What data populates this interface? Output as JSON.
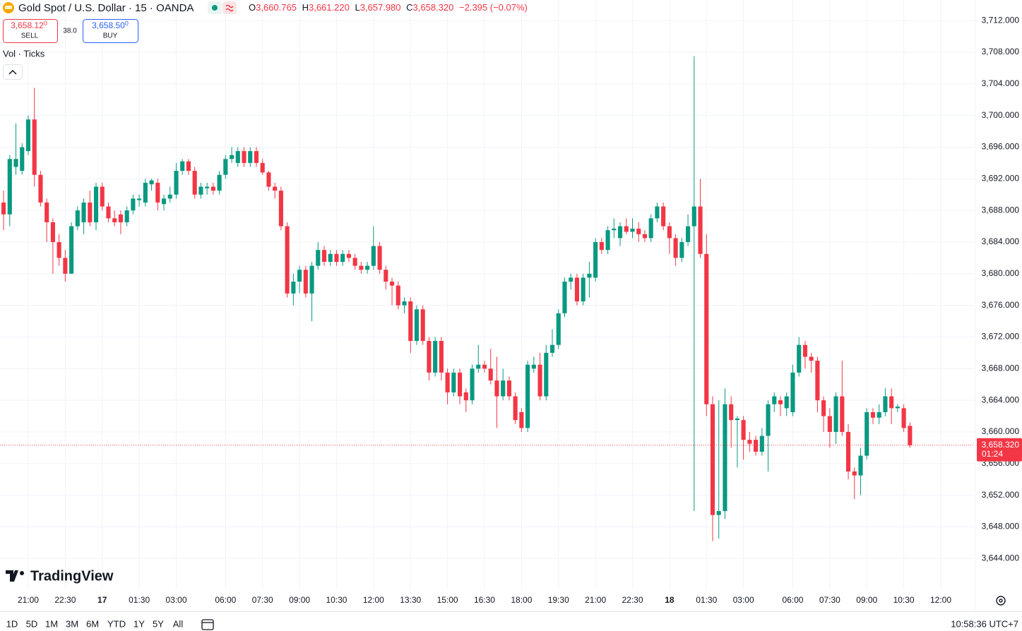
{
  "header": {
    "symbol": "Gold Spot / U.S. Dollar · 15 · OANDA",
    "o_label": "O",
    "open": "3,660.765",
    "h_label": "H",
    "high": "3,661.220",
    "l_label": "L",
    "low": "3,657.980",
    "c_label": "C",
    "close": "3,658.320",
    "change": "−2.395 (−0.07%)"
  },
  "trade": {
    "sell_price": "3,658.12",
    "sell_digit": "0",
    "sell_label": "SELL",
    "spread": "38.0",
    "buy_price": "3,658.50",
    "buy_digit": "0",
    "buy_label": "BUY"
  },
  "indicator": "Vol · Ticks",
  "logo": "TradingView",
  "ranges": [
    "1D",
    "5D",
    "1M",
    "3M",
    "6M",
    "YTD",
    "1Y",
    "5Y",
    "All"
  ],
  "clock": "10:58:36 UTC+7",
  "chart_data": {
    "type": "candlestick",
    "up_color": "#089981",
    "down_color": "#f23645",
    "grid": true,
    "xlim": [
      -0.58,
      157.5
    ],
    "ylim": [
      3640.1,
      3714.6
    ],
    "xticks": [
      {
        "value": 4,
        "label": "21:00"
      },
      {
        "value": 10,
        "label": "22:30"
      },
      {
        "value": 16,
        "label": "17"
      },
      {
        "value": 22,
        "label": "01:30"
      },
      {
        "value": 28,
        "label": "03:00"
      },
      {
        "value": 36,
        "label": "06:00"
      },
      {
        "value": 42,
        "label": "07:30"
      },
      {
        "value": 48,
        "label": "09:00"
      },
      {
        "value": 54,
        "label": "10:30"
      },
      {
        "value": 60,
        "label": "12:00"
      },
      {
        "value": 66,
        "label": "13:30"
      },
      {
        "value": 72,
        "label": "15:00"
      },
      {
        "value": 78,
        "label": "16:30"
      },
      {
        "value": 84,
        "label": "18:00"
      },
      {
        "value": 90,
        "label": "19:30"
      },
      {
        "value": 96,
        "label": "21:00"
      },
      {
        "value": 102,
        "label": "22:30"
      },
      {
        "value": 108,
        "label": "18"
      },
      {
        "value": 114,
        "label": "01:30"
      },
      {
        "value": 120,
        "label": "03:00"
      },
      {
        "value": 128,
        "label": "06:00"
      },
      {
        "value": 134,
        "label": "07:30"
      },
      {
        "value": 140,
        "label": "09:00"
      },
      {
        "value": 146,
        "label": "10:30"
      },
      {
        "value": 152,
        "label": "12:00"
      }
    ],
    "yticks": [
      {
        "value": 3644,
        "label": "3,644.000"
      },
      {
        "value": 3648,
        "label": "3,648.000"
      },
      {
        "value": 3652,
        "label": "3,652.000"
      },
      {
        "value": 3656,
        "label": "3,656.000"
      },
      {
        "value": 3660,
        "label": "3,660.000"
      },
      {
        "value": 3664,
        "label": "3,664.000"
      },
      {
        "value": 3668,
        "label": "3,668.000"
      },
      {
        "value": 3672,
        "label": "3,672.000"
      },
      {
        "value": 3676,
        "label": "3,676.000"
      },
      {
        "value": 3680,
        "label": "3,680.000"
      },
      {
        "value": 3684,
        "label": "3,684.000"
      },
      {
        "value": 3688,
        "label": "3,688.000"
      },
      {
        "value": 3692,
        "label": "3,692.000"
      },
      {
        "value": 3696,
        "label": "3,696.000"
      },
      {
        "value": 3700,
        "label": "3,700.000"
      },
      {
        "value": 3704,
        "label": "3,704.000"
      },
      {
        "value": 3708,
        "label": "3,708.000"
      },
      {
        "value": 3712,
        "label": "3,712.000"
      }
    ],
    "last_price": {
      "value": 3658.32,
      "label": "3,658.320"
    },
    "countdown": "01:24",
    "open": [
      3689,
      3687.5,
      3693.5,
      3693,
      3695.5,
      3699.5,
      3692.5,
      3689,
      3686.5,
      3684,
      3682,
      3680,
      3686,
      3686.5,
      3689,
      3686.5,
      3691,
      3688.5,
      3687,
      3687.5,
      3686.5,
      3688,
      3689.3,
      3689,
      3691.3,
      3691.5,
      3688.8,
      3689.5,
      3690,
      3693,
      3694.2,
      3693,
      3690,
      3690.8,
      3691,
      3690.5,
      3692.5,
      3694.5,
      3694,
      3695.5,
      3694,
      3695.5,
      3694,
      3692.8,
      3691,
      3690.5,
      3686,
      3677.5,
      3679,
      3680.5,
      3677.5,
      3681,
      3683,
      3681.5,
      3682.5,
      3681.5,
      3682.5,
      3682,
      3681,
      3680.5,
      3681,
      3683.5,
      3680.5,
      3679,
      3678.5,
      3676,
      3676.5,
      3671.5,
      3675.5,
      3671.5,
      3667.5,
      3671.5,
      3667.5,
      3665,
      3667.5,
      3665,
      3664,
      3668,
      3668.5,
      3668,
      3666.5,
      3664.5,
      3666.5,
      3664.5,
      3662.5,
      3660.5,
      3668,
      3668.5,
      3664.5,
      3670,
      3671,
      3675,
      3679,
      3679.5,
      3676.5,
      3679.5,
      3679.5,
      3684,
      3683,
      3685.5,
      3684.5,
      3686,
      3685.3,
      3685.7,
      3685,
      3684.5,
      3687,
      3688.5,
      3686,
      3684.5,
      3682,
      3684,
      3686,
      3688.5,
      3682.5,
      3663.5,
      3649.5,
      3650,
      3663.5,
      3661.5,
      3661.5,
      3659,
      3659,
      3657.5,
      3659.5,
      3663.5,
      3664,
      3663,
      3662.5,
      3667.5,
      3671,
      3669.5,
      3669,
      3664,
      3662,
      3660,
      3664.5,
      3660,
      3655,
      3654.5,
      3657,
      3662.5,
      3661.8,
      3662.5,
      3664.5,
      3663,
      3663,
      3660.765
    ],
    "high": [
      3690.5,
      3695,
      3699,
      3696.5,
      3700,
      3703.5,
      3693,
      3689.5,
      3687,
      3685,
      3683,
      3686.5,
      3688.5,
      3689.5,
      3690.5,
      3691.5,
      3691.5,
      3689,
      3688,
      3688,
      3688.5,
      3690,
      3690,
      3692,
      3692,
      3692,
      3690,
      3691,
      3694,
      3694.5,
      3694.5,
      3693.5,
      3691.5,
      3691.5,
      3691.5,
      3693,
      3695,
      3696,
      3696,
      3696,
      3696,
      3696,
      3694.5,
      3693,
      3691.5,
      3691,
      3686.5,
      3680,
      3681,
      3681,
      3681.5,
      3684,
      3683.5,
      3683,
      3683,
      3683,
      3683,
      3682.5,
      3681.5,
      3681.5,
      3686,
      3684,
      3681,
      3679.5,
      3679,
      3677,
      3677,
      3676,
      3676,
      3672,
      3672,
      3672,
      3668,
      3668,
      3668,
      3665.5,
      3668.5,
      3671,
      3669,
      3670.5,
      3669.5,
      3668,
      3667,
      3665,
      3663,
      3669,
      3669.5,
      3670,
      3671,
      3673,
      3675.5,
      3679.5,
      3680,
      3680,
      3680,
      3681.5,
      3684.5,
      3684.5,
      3686,
      3687,
      3686.5,
      3687,
      3687,
      3686.5,
      3685.5,
      3687.5,
      3689,
      3689,
      3686.5,
      3685,
      3684.5,
      3687.5,
      3707.5,
      3692,
      3685,
      3664.5,
      3664,
      3665.5,
      3664.5,
      3662,
      3662,
      3660,
      3659.5,
      3660.5,
      3664,
      3665,
      3664.5,
      3665,
      3668.5,
      3672,
      3671.5,
      3670,
      3669.5,
      3664.5,
      3663,
      3665,
      3669,
      3661,
      3655.5,
      3658,
      3663,
      3663,
      3663.5,
      3665.5,
      3665.5,
      3663.5,
      3663.5,
      3661.22
    ],
    "low": [
      3685.5,
      3686,
      3692.5,
      3692.5,
      3695,
      3691,
      3688.5,
      3684,
      3680,
      3681,
      3679,
      3680,
      3685.5,
      3685,
      3686,
      3685.5,
      3688,
      3686.5,
      3686,
      3685,
      3686,
      3687.5,
      3688.5,
      3688.5,
      3690.5,
      3688,
      3688,
      3689,
      3689.5,
      3692.5,
      3692.5,
      3689.5,
      3689.5,
      3690,
      3690,
      3690,
      3692,
      3694,
      3693.5,
      3693.5,
      3693.5,
      3693.5,
      3692.5,
      3690.5,
      3689.5,
      3685.5,
      3677,
      3676,
      3677.5,
      3677,
      3674,
      3680.5,
      3681,
      3681,
      3681,
      3681,
      3681.5,
      3680.5,
      3680,
      3680,
      3680.5,
      3680,
      3678,
      3676,
      3675.5,
      3675,
      3670,
      3671,
      3671,
      3666.5,
      3667,
      3666.5,
      3663.5,
      3664.5,
      3663.5,
      3662.5,
      3663.5,
      3667.5,
      3667.5,
      3666,
      3660.5,
      3664,
      3664,
      3661,
      3660,
      3660,
      3667.5,
      3664,
      3664,
      3669.5,
      3670.5,
      3674.5,
      3678,
      3676,
      3676,
      3677,
      3679,
      3682.5,
      3682.5,
      3684.5,
      3683.5,
      3685,
      3684.5,
      3684,
      3684,
      3684,
      3686.5,
      3685.5,
      3682.5,
      3681,
      3681.5,
      3683.5,
      3650,
      3682,
      3662,
      3646.2,
      3646.5,
      3649,
      3658,
      3655.5,
      3656.5,
      3657.5,
      3657,
      3657,
      3655,
      3662.5,
      3662,
      3662,
      3662,
      3667,
      3668,
      3667.5,
      3662.5,
      3660,
      3658,
      3658.5,
      3659.5,
      3654,
      3651.5,
      3652,
      3656.5,
      3661,
      3661,
      3662,
      3661,
      3662.5,
      3660,
      3657.98
    ],
    "close": [
      3687.5,
      3694.5,
      3694.5,
      3696,
      3699.5,
      3692.5,
      3689,
      3686.5,
      3684,
      3682,
      3680,
      3686,
      3688,
      3689,
      3686.5,
      3691,
      3688.5,
      3687,
      3686.5,
      3686.5,
      3688,
      3689.5,
      3689.5,
      3691.5,
      3691.8,
      3689,
      3689.5,
      3690,
      3693,
      3694.2,
      3693,
      3690,
      3691,
      3691,
      3690.5,
      3692.5,
      3694.5,
      3695,
      3695.5,
      3694,
      3695.5,
      3694,
      3692.8,
      3691,
      3690.5,
      3686,
      3677.5,
      3679,
      3680.5,
      3677.5,
      3681,
      3683,
      3681.5,
      3682.5,
      3681.5,
      3682.5,
      3682,
      3681,
      3680.5,
      3681,
      3683.5,
      3680.5,
      3679,
      3678.5,
      3676,
      3676.5,
      3671.5,
      3675.5,
      3671.5,
      3667.5,
      3671.5,
      3667.5,
      3665,
      3667.5,
      3664.5,
      3664,
      3668,
      3668.5,
      3668,
      3666.5,
      3664.5,
      3666.5,
      3664.5,
      3661.5,
      3660.5,
      3668.5,
      3668.5,
      3664.5,
      3670,
      3671,
      3675,
      3679,
      3679.5,
      3676.5,
      3679.5,
      3680,
      3684,
      3683,
      3685.5,
      3685.7,
      3686,
      3685.3,
      3685.7,
      3685,
      3684.5,
      3687,
      3688.5,
      3686,
      3684.5,
      3682,
      3684,
      3686,
      3688.5,
      3682.5,
      3663.5,
      3649.5,
      3650,
      3663.5,
      3661.5,
      3661.7,
      3659,
      3658.5,
      3657.5,
      3659.5,
      3663.5,
      3664.5,
      3663.5,
      3664.5,
      3667.5,
      3671,
      3669.5,
      3669,
      3664,
      3662,
      3660,
      3664.5,
      3660,
      3655,
      3654.5,
      3657,
      3662.5,
      3661.8,
      3662.5,
      3664.5,
      3663,
      3663.2,
      3660.5,
      3658.32
    ]
  }
}
